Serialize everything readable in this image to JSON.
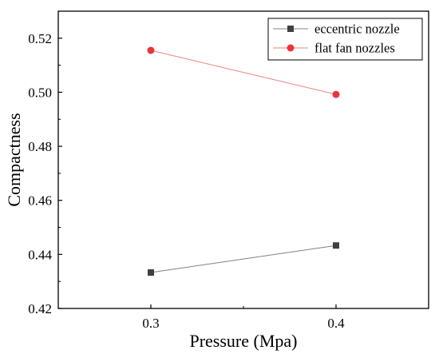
{
  "chart_data": {
    "type": "line",
    "xlabel": "Pressure (Mpa)",
    "ylabel": "Compactness",
    "xlim": [
      0.25,
      0.45
    ],
    "ylim": [
      0.42,
      0.53
    ],
    "x_ticks": [
      0.3,
      0.4
    ],
    "x_tick_labels": [
      "0.3",
      "0.4"
    ],
    "y_ticks": [
      0.42,
      0.44,
      0.46,
      0.48,
      0.5,
      0.52
    ],
    "y_tick_labels": [
      "0.42",
      "0.44",
      "0.46",
      "0.48",
      "0.50",
      "0.52"
    ],
    "grid": false,
    "legend_position": "top-right",
    "series": [
      {
        "name": "eccentric nozzle",
        "marker": "square",
        "color": "#404040",
        "line_color": "#808080",
        "x": [
          0.3,
          0.4
        ],
        "y": [
          0.4333,
          0.4433
        ]
      },
      {
        "name": "flat fan nozzles",
        "marker": "circle",
        "color": "#e8353a",
        "line_color": "#ee8080",
        "x": [
          0.3,
          0.4
        ],
        "y": [
          0.5155,
          0.4992
        ]
      }
    ]
  }
}
